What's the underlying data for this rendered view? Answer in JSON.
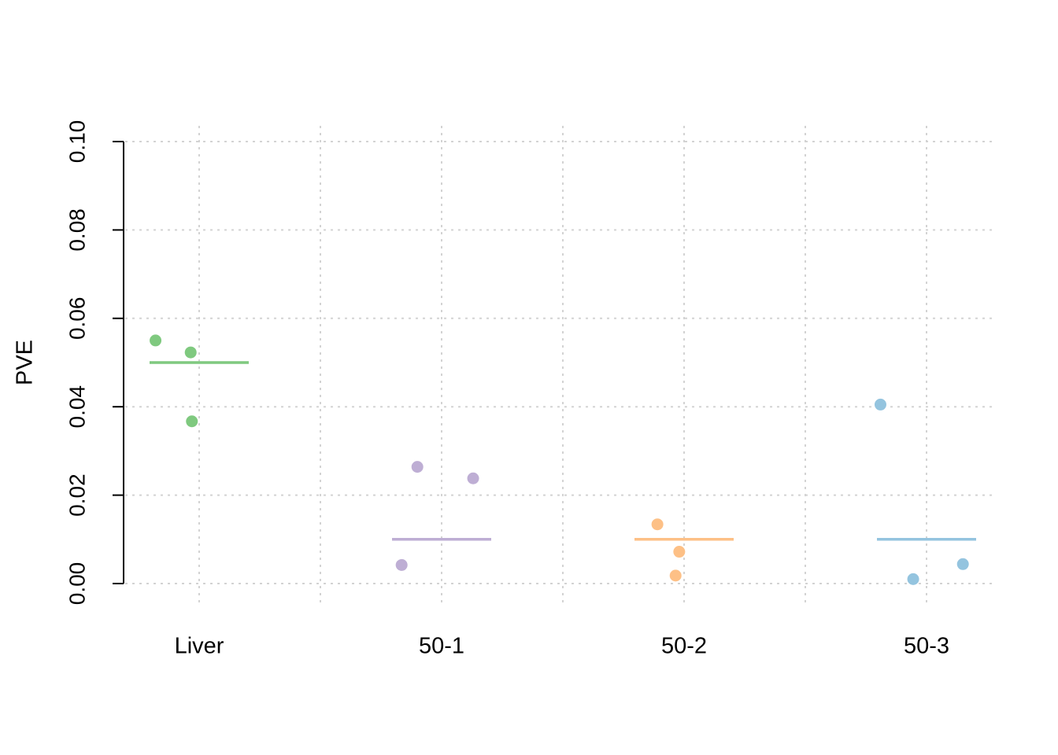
{
  "chart_data": {
    "type": "scatter",
    "title": "",
    "xlabel": "",
    "ylabel": "PVE",
    "ylim": [
      0,
      0.1
    ],
    "y_ticks": [
      "0.00",
      "0.02",
      "0.04",
      "0.06",
      "0.08",
      "0.10"
    ],
    "grid": true,
    "categories": [
      "Liver",
      "50-1",
      "50-2",
      "50-3"
    ],
    "series": [
      {
        "category": "Liver",
        "color": "#7fc97f",
        "reference": 0.05,
        "points": [
          {
            "offset": -0.18,
            "y": 0.055
          },
          {
            "offset": -0.035,
            "y": 0.0523
          },
          {
            "offset": -0.03,
            "y": 0.0367
          }
        ]
      },
      {
        "category": "50-1",
        "color": "#beaed4",
        "reference": 0.01,
        "points": [
          {
            "offset": -0.165,
            "y": 0.0042
          },
          {
            "offset": -0.1,
            "y": 0.0264
          },
          {
            "offset": 0.13,
            "y": 0.0238
          }
        ]
      },
      {
        "category": "50-2",
        "color": "#fdc086",
        "reference": 0.01,
        "points": [
          {
            "offset": -0.11,
            "y": 0.0134
          },
          {
            "offset": -0.035,
            "y": 0.0018
          },
          {
            "offset": -0.02,
            "y": 0.0072
          }
        ]
      },
      {
        "category": "50-3",
        "color": "#94c4df",
        "reference": 0.01,
        "points": [
          {
            "offset": -0.19,
            "y": 0.0405
          },
          {
            "offset": -0.055,
            "y": 0.001
          },
          {
            "offset": 0.15,
            "y": 0.0044
          }
        ]
      }
    ]
  }
}
